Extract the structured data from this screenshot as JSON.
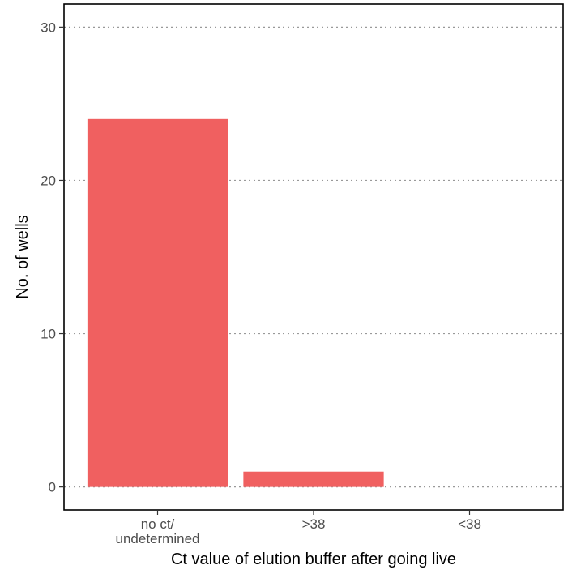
{
  "chart_data": {
    "type": "bar",
    "title": "",
    "xlabel": "Ct value of elution buffer after going live",
    "ylabel": "No. of wells",
    "categories": [
      [
        "no ct/",
        "undetermined"
      ],
      [
        ">38"
      ],
      [
        "<38"
      ]
    ],
    "values": [
      24,
      1,
      0
    ],
    "ylim": [
      -1.5,
      31.5
    ],
    "yticks": [
      0,
      10,
      20,
      30
    ],
    "grid": "horizontal dotted",
    "legend": "none",
    "bar_color": "#f06060",
    "grid_color": "#999999"
  }
}
